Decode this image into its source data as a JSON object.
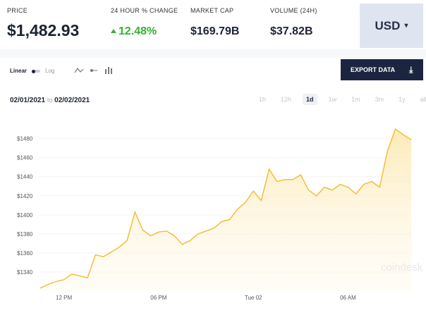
{
  "header": {
    "stats": [
      {
        "label": "PRICE",
        "value": "$1,482.93"
      },
      {
        "label": "24 HOUR % CHANGE",
        "value": "12.48%"
      },
      {
        "label": "MARKET CAP",
        "value": "$169.79B"
      },
      {
        "label": "VOLUME (24H)",
        "value": "$37.82B"
      }
    ],
    "currency": "USD"
  },
  "controls": {
    "scale_linear": "Linear",
    "scale_log": "Log",
    "export": "EXPORT DATA",
    "date_from": "02/01/2021",
    "date_sep": "to",
    "date_to": "02/02/2021",
    "ranges": [
      "1h",
      "12h",
      "1d",
      "1w",
      "1m",
      "3m",
      "1y",
      "all"
    ],
    "active_range": "1d"
  },
  "watermark": "coindesk",
  "chart_data": {
    "type": "line",
    "color": "#f2bb2c",
    "categories": [
      null,
      null,
      null,
      "12 PM",
      null,
      null,
      null,
      null,
      null,
      null,
      null,
      null,
      null,
      null,
      null,
      "06 PM",
      null,
      null,
      null,
      null,
      null,
      null,
      null,
      null,
      null,
      null,
      null,
      "Tue 02",
      null,
      null,
      null,
      null,
      null,
      null,
      null,
      null,
      null,
      null,
      null,
      "06 AM",
      null,
      null,
      null,
      null,
      null,
      null,
      null,
      null
    ],
    "values": [
      1323,
      1327,
      1330,
      1332,
      1338,
      1336,
      1334,
      1358,
      1356,
      1361,
      1366,
      1373,
      1403,
      1384,
      1378,
      1382,
      1383,
      1378,
      1369,
      1373,
      1380,
      1383,
      1386,
      1393,
      1395,
      1406,
      1413,
      1425,
      1415,
      1448,
      1435,
      1437,
      1437,
      1442,
      1426,
      1420,
      1429,
      1426,
      1432,
      1429,
      1422,
      1432,
      1435,
      1429,
      1467,
      1490,
      1484,
      1479
    ],
    "ylim": [
      1320,
      1496
    ],
    "yticks": [
      {
        "value": 1340,
        "label": "$1340"
      },
      {
        "value": 1360,
        "label": "$1360"
      },
      {
        "value": 1380,
        "label": "$1380"
      },
      {
        "value": 1400,
        "label": "$1400"
      },
      {
        "value": 1420,
        "label": "$1420"
      },
      {
        "value": 1440,
        "label": "$1440"
      },
      {
        "value": 1460,
        "label": "$1460"
      },
      {
        "value": 1480,
        "label": "$1480"
      }
    ]
  }
}
